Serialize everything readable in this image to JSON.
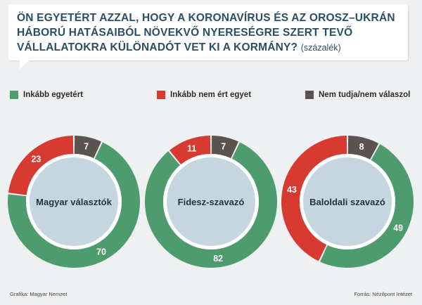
{
  "title": {
    "text": "ÖN EGYETÉRT AZZAL, HOGY A KORONAVÍRUS ÉS AZ OROSZ–UKRÁN HÁBORÚ HATÁSAIBÓL NÖVEKVŐ NYERESÉGRE SZERT TEVŐ VÁLLALATOKRA KÜLÖNADÓT VET KI A KORMÁNY?",
    "unit": "(százalék)"
  },
  "colors": {
    "agree": "#4e9c6d",
    "disagree": "#d63a31",
    "unsure": "#5a5350",
    "center": "#c6d6df",
    "background": "#eef0f1"
  },
  "legend": [
    {
      "label": "Inkább egyetért",
      "color": "#4e9c6d"
    },
    {
      "label": "Inkább nem ért egyet",
      "color": "#d63a31"
    },
    {
      "label": "Nem tudja/nem válaszol",
      "color": "#5a5350"
    }
  ],
  "chart_data": [
    {
      "type": "pie",
      "title": "Magyar választók",
      "categories": [
        "Inkább egyetért",
        "Inkább nem ért egyet",
        "Nem tudja/nem válaszol"
      ],
      "values": [
        70,
        23,
        7
      ]
    },
    {
      "type": "pie",
      "title": "Fidesz-szavazó",
      "categories": [
        "Inkább egyetért",
        "Inkább nem ért egyet",
        "Nem tudja/nem válaszol"
      ],
      "values": [
        82,
        11,
        7
      ]
    },
    {
      "type": "pie",
      "title": "Baloldali szavazó",
      "categories": [
        "Inkább egyetért",
        "Inkább nem ért egyet",
        "Nem tudja/nem válaszol"
      ],
      "values": [
        49,
        43,
        8
      ]
    }
  ],
  "footer": {
    "left": "Grafika: Magyar Nemzet",
    "right": "Forrás: Nézőpont Intézet"
  }
}
